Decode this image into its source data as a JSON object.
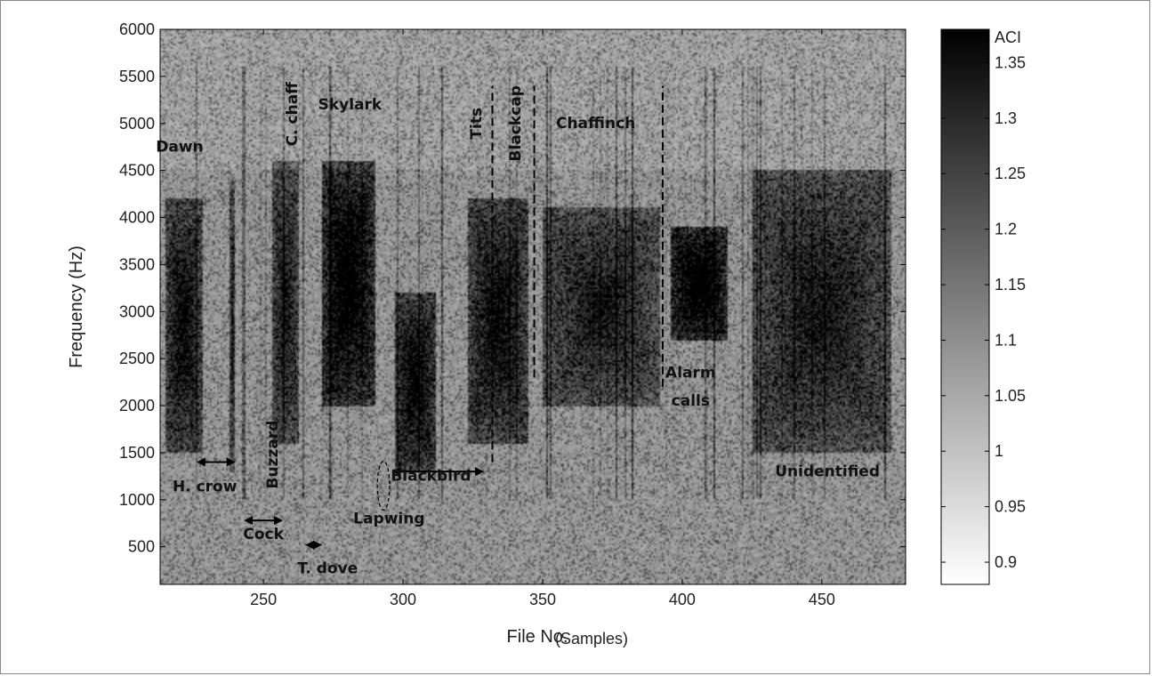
{
  "chart_data": {
    "type": "heatmap",
    "xlabel": "File No.",
    "xlabel_suffix": "(Samples)",
    "ylabel": "Frequency (Hz)",
    "xlim": [
      213,
      480
    ],
    "ylim": [
      100,
      6000
    ],
    "xticks": [
      250,
      300,
      350,
      400,
      450
    ],
    "yticks": [
      500,
      1000,
      1500,
      2000,
      2500,
      3000,
      3500,
      4000,
      4500,
      5000,
      5500,
      6000
    ],
    "colorbar": {
      "label": "ACI",
      "range": [
        0.88,
        1.38
      ],
      "ticks": [
        0.9,
        0.95,
        1,
        1.05,
        1.1,
        1.15,
        1.2,
        1.25,
        1.3,
        1.35
      ],
      "colormap": "gray-reversed"
    },
    "activity_regions": [
      {
        "x": [
          215,
          228
        ],
        "y": [
          1500,
          4200
        ],
        "intensity": 0.7
      },
      {
        "x": [
          238,
          240
        ],
        "y": [
          1300,
          4400
        ],
        "intensity": 0.6
      },
      {
        "x": [
          253,
          263
        ],
        "y": [
          1600,
          4600
        ],
        "intensity": 0.6
      },
      {
        "x": [
          271,
          290
        ],
        "y": [
          2000,
          4600
        ],
        "intensity": 0.85
      },
      {
        "x": [
          297,
          312
        ],
        "y": [
          1300,
          3200
        ],
        "intensity": 0.75
      },
      {
        "x": [
          323,
          345
        ],
        "y": [
          1600,
          4200
        ],
        "intensity": 0.7
      },
      {
        "x": [
          350,
          392
        ],
        "y": [
          2000,
          4100
        ],
        "intensity": 0.6
      },
      {
        "x": [
          396,
          416
        ],
        "y": [
          2700,
          3900
        ],
        "intensity": 0.9
      },
      {
        "x": [
          425,
          475
        ],
        "y": [
          1500,
          4500
        ],
        "intensity": 0.6
      }
    ],
    "dashed_lines": [
      {
        "x": 332,
        "y": [
          1400,
          5400
        ]
      },
      {
        "x": 347,
        "y": [
          2300,
          5400
        ]
      },
      {
        "x": 393,
        "y": [
          2200,
          5400
        ]
      }
    ],
    "annotations": [
      {
        "text": "Dawn",
        "x": 220,
        "y": 4700
      },
      {
        "text": "Skylark",
        "x": 281,
        "y": 5150
      },
      {
        "text": "C. chaff",
        "x": 262,
        "y": 5100,
        "rotate": -90
      },
      {
        "text": "Tits",
        "x": 328,
        "y": 5000,
        "rotate": -90
      },
      {
        "text": "Blackcap",
        "x": 342,
        "y": 5000,
        "rotate": -90
      },
      {
        "text": "Chaffinch",
        "x": 369,
        "y": 4950
      },
      {
        "text": "Buzzard",
        "x": 255,
        "y": 1480,
        "rotate": -90
      },
      {
        "text": "Alarm",
        "x": 403,
        "y": 2300
      },
      {
        "text": "calls",
        "x": 403,
        "y": 2000
      },
      {
        "text": "H. crow",
        "x": 229,
        "y": 1090
      },
      {
        "text": "Cock",
        "x": 250,
        "y": 580
      },
      {
        "text": "T. dove",
        "x": 273,
        "y": 220
      },
      {
        "text": "Lapwing",
        "x": 295,
        "y": 750
      },
      {
        "text": "Blackbird",
        "x": 310,
        "y": 1200
      },
      {
        "text": "Unidentified",
        "x": 452,
        "y": 1250
      }
    ],
    "arrows": [
      {
        "x": [
          226,
          240
        ],
        "y": 1400
      },
      {
        "x": [
          243,
          257
        ],
        "y": 780
      },
      {
        "x": [
          265,
          271
        ],
        "y": 520
      },
      {
        "x": [
          296,
          329
        ],
        "y": 1300
      }
    ],
    "ellipses": [
      {
        "cx": 259,
        "cy": 2400,
        "rx": 2.5,
        "ry": 300
      },
      {
        "cx": 293,
        "cy": 1150,
        "rx": 2.2,
        "ry": 260
      }
    ]
  }
}
